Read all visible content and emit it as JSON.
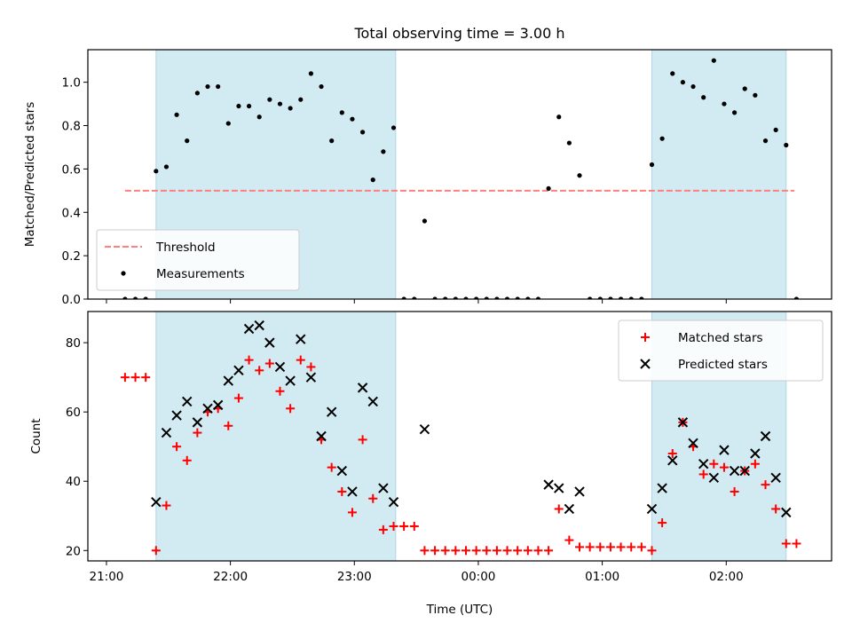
{
  "chart_data": {
    "title": "Total observing time = 3.00 h",
    "xlabel": "Time (UTC)",
    "x_ticks": [
      "21:00",
      "22:00",
      "23:00",
      "00:00",
      "01:00",
      "02:00"
    ],
    "x_range": [
      "20:51",
      "02:51"
    ],
    "observing_windows": [
      [
        "21:24",
        "23:20"
      ],
      [
        "01:24",
        "02:29"
      ]
    ],
    "window_color": "#add8e6",
    "panels": [
      {
        "type": "scatter",
        "ylabel": "Matched/Predicted stars",
        "ylim": [
          0,
          1.15
        ],
        "y_ticks": [
          "0.0",
          "0.2",
          "0.4",
          "0.6",
          "0.8",
          "1.0"
        ],
        "legend_position": "lower-left",
        "threshold": {
          "name": "Threshold",
          "value": 0.5,
          "x_start": "21:09",
          "x_end": "02:33",
          "color": "#ff7f7f"
        },
        "series": [
          {
            "name": "Measurements",
            "color": "#000000",
            "points": [
              [
                "21:09",
                0.0
              ],
              [
                "21:14",
                0.0
              ],
              [
                "21:19",
                0.0
              ],
              [
                "21:24",
                0.59
              ],
              [
                "21:29",
                0.61
              ],
              [
                "21:34",
                0.85
              ],
              [
                "21:39",
                0.73
              ],
              [
                "21:44",
                0.95
              ],
              [
                "21:49",
                0.98
              ],
              [
                "21:54",
                0.98
              ],
              [
                "21:59",
                0.81
              ],
              [
                "22:04",
                0.89
              ],
              [
                "22:09",
                0.89
              ],
              [
                "22:14",
                0.84
              ],
              [
                "22:19",
                0.92
              ],
              [
                "22:24",
                0.9
              ],
              [
                "22:29",
                0.88
              ],
              [
                "22:34",
                0.92
              ],
              [
                "22:39",
                1.04
              ],
              [
                "22:44",
                0.98
              ],
              [
                "22:49",
                0.73
              ],
              [
                "22:54",
                0.86
              ],
              [
                "22:59",
                0.83
              ],
              [
                "23:04",
                0.77
              ],
              [
                "23:09",
                0.55
              ],
              [
                "23:14",
                0.68
              ],
              [
                "23:19",
                0.79
              ],
              [
                "23:24",
                0.0
              ],
              [
                "23:29",
                0.0
              ],
              [
                "23:34",
                0.36
              ],
              [
                "23:39",
                0.0
              ],
              [
                "23:44",
                0.0
              ],
              [
                "23:49",
                0.0
              ],
              [
                "23:54",
                0.0
              ],
              [
                "23:59",
                0.0
              ],
              [
                "00:04",
                0.0
              ],
              [
                "00:09",
                0.0
              ],
              [
                "00:14",
                0.0
              ],
              [
                "00:19",
                0.0
              ],
              [
                "00:24",
                0.0
              ],
              [
                "00:29",
                0.0
              ],
              [
                "00:34",
                0.51
              ],
              [
                "00:39",
                0.84
              ],
              [
                "00:44",
                0.72
              ],
              [
                "00:49",
                0.57
              ],
              [
                "00:54",
                0.0
              ],
              [
                "00:59",
                0.0
              ],
              [
                "01:04",
                0.0
              ],
              [
                "01:09",
                0.0
              ],
              [
                "01:14",
                0.0
              ],
              [
                "01:19",
                0.0
              ],
              [
                "01:24",
                0.62
              ],
              [
                "01:29",
                0.74
              ],
              [
                "01:34",
                1.04
              ],
              [
                "01:39",
                1.0
              ],
              [
                "01:44",
                0.98
              ],
              [
                "01:49",
                0.93
              ],
              [
                "01:54",
                1.1
              ],
              [
                "01:59",
                0.9
              ],
              [
                "02:04",
                0.86
              ],
              [
                "02:09",
                0.97
              ],
              [
                "02:14",
                0.94
              ],
              [
                "02:19",
                0.73
              ],
              [
                "02:24",
                0.78
              ],
              [
                "02:29",
                0.71
              ],
              [
                "02:34",
                0.0
              ]
            ]
          }
        ]
      },
      {
        "type": "scatter",
        "ylabel": "Count",
        "ylim": [
          17,
          89
        ],
        "y_ticks": [
          "20",
          "40",
          "60",
          "80"
        ],
        "legend_position": "upper-right",
        "series": [
          {
            "name": "Matched stars",
            "color": "#ff0000",
            "marker": "+",
            "points": [
              [
                "21:09",
                70
              ],
              [
                "21:14",
                70
              ],
              [
                "21:19",
                70
              ],
              [
                "21:24",
                20
              ],
              [
                "21:29",
                33
              ],
              [
                "21:34",
                50
              ],
              [
                "21:39",
                46
              ],
              [
                "21:44",
                54
              ],
              [
                "21:49",
                60
              ],
              [
                "21:54",
                61
              ],
              [
                "21:59",
                56
              ],
              [
                "22:04",
                64
              ],
              [
                "22:09",
                75
              ],
              [
                "22:14",
                72
              ],
              [
                "22:19",
                74
              ],
              [
                "22:24",
                66
              ],
              [
                "22:29",
                61
              ],
              [
                "22:34",
                75
              ],
              [
                "22:39",
                73
              ],
              [
                "22:44",
                52
              ],
              [
                "22:49",
                44
              ],
              [
                "22:54",
                37
              ],
              [
                "22:59",
                31
              ],
              [
                "23:04",
                52
              ],
              [
                "23:09",
                35
              ],
              [
                "23:14",
                26
              ],
              [
                "23:19",
                27
              ],
              [
                "23:24",
                27
              ],
              [
                "23:29",
                27
              ],
              [
                "23:34",
                20
              ],
              [
                "23:39",
                20
              ],
              [
                "23:44",
                20
              ],
              [
                "23:49",
                20
              ],
              [
                "23:54",
                20
              ],
              [
                "23:59",
                20
              ],
              [
                "00:04",
                20
              ],
              [
                "00:09",
                20
              ],
              [
                "00:14",
                20
              ],
              [
                "00:19",
                20
              ],
              [
                "00:24",
                20
              ],
              [
                "00:29",
                20
              ],
              [
                "00:34",
                20
              ],
              [
                "00:39",
                32
              ],
              [
                "00:44",
                23
              ],
              [
                "00:49",
                21
              ],
              [
                "00:54",
                21
              ],
              [
                "00:59",
                21
              ],
              [
                "01:04",
                21
              ],
              [
                "01:09",
                21
              ],
              [
                "01:14",
                21
              ],
              [
                "01:19",
                21
              ],
              [
                "01:24",
                20
              ],
              [
                "01:29",
                28
              ],
              [
                "01:34",
                48
              ],
              [
                "01:39",
                57
              ],
              [
                "01:44",
                50
              ],
              [
                "01:49",
                42
              ],
              [
                "01:54",
                45
              ],
              [
                "01:59",
                44
              ],
              [
                "02:04",
                37
              ],
              [
                "02:09",
                43
              ],
              [
                "02:14",
                45
              ],
              [
                "02:19",
                39
              ],
              [
                "02:24",
                32
              ],
              [
                "02:29",
                22
              ],
              [
                "02:34",
                22
              ]
            ]
          },
          {
            "name": "Predicted stars",
            "color": "#000000",
            "marker": "x",
            "points": [
              [
                "21:24",
                34
              ],
              [
                "21:29",
                54
              ],
              [
                "21:34",
                59
              ],
              [
                "21:39",
                63
              ],
              [
                "21:44",
                57
              ],
              [
                "21:49",
                61
              ],
              [
                "21:54",
                62
              ],
              [
                "21:59",
                69
              ],
              [
                "22:04",
                72
              ],
              [
                "22:09",
                84
              ],
              [
                "22:14",
                85
              ],
              [
                "22:19",
                80
              ],
              [
                "22:24",
                73
              ],
              [
                "22:29",
                69
              ],
              [
                "22:34",
                81
              ],
              [
                "22:39",
                70
              ],
              [
                "22:44",
                53
              ],
              [
                "22:49",
                60
              ],
              [
                "22:54",
                43
              ],
              [
                "22:59",
                37
              ],
              [
                "23:04",
                67
              ],
              [
                "23:09",
                63
              ],
              [
                "23:14",
                38
              ],
              [
                "23:19",
                34
              ],
              [
                "23:34",
                55
              ],
              [
                "00:34",
                39
              ],
              [
                "00:39",
                38
              ],
              [
                "00:44",
                32
              ],
              [
                "00:49",
                37
              ],
              [
                "01:24",
                32
              ],
              [
                "01:29",
                38
              ],
              [
                "01:34",
                46
              ],
              [
                "01:39",
                57
              ],
              [
                "01:44",
                51
              ],
              [
                "01:49",
                45
              ],
              [
                "01:54",
                41
              ],
              [
                "01:59",
                49
              ],
              [
                "02:04",
                43
              ],
              [
                "02:09",
                43
              ],
              [
                "02:14",
                48
              ],
              [
                "02:19",
                53
              ],
              [
                "02:24",
                41
              ],
              [
                "02:29",
                31
              ]
            ]
          }
        ]
      }
    ]
  }
}
